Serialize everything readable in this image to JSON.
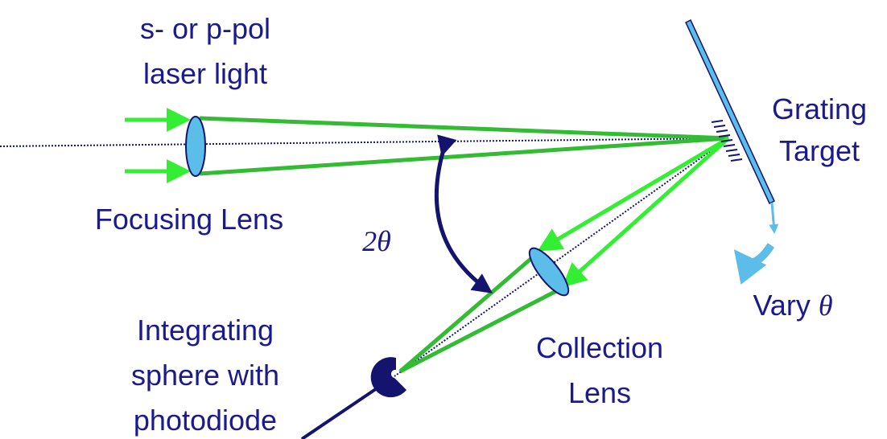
{
  "labels": {
    "source_line1": "s- or p-pol",
    "source_line2": "laser light",
    "grating_line1": "Grating",
    "grating_line2": "Target",
    "focusing_lens": "Focusing Lens",
    "angle_number": "2",
    "angle_symbol": "θ",
    "vary_word": "Vary",
    "vary_symbol": "θ",
    "sphere_line1": "Integrating",
    "sphere_line2": "sphere with",
    "sphere_line3": "photodiode",
    "collection_line1": "Collection",
    "collection_line2": "Lens"
  }
}
